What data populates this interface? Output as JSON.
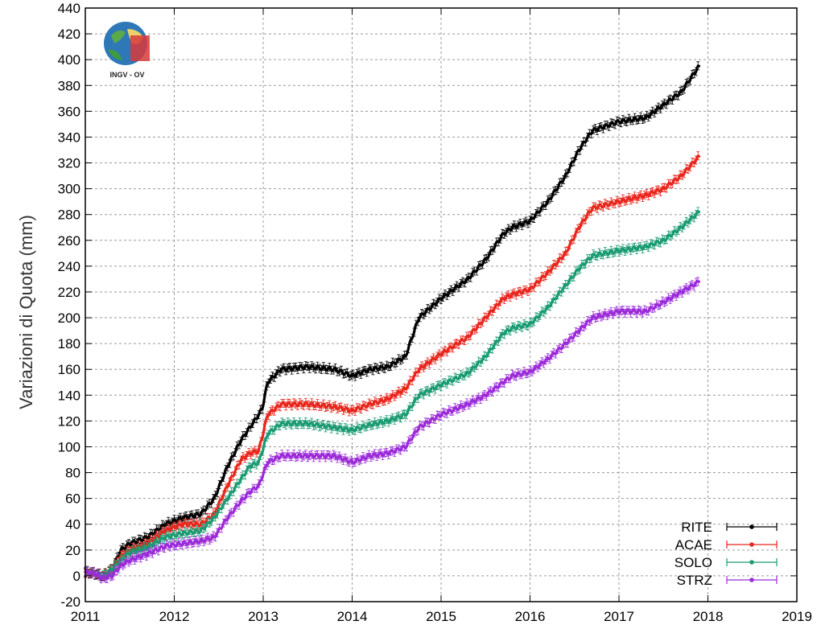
{
  "logo": {
    "text": "INGV - OV"
  },
  "chart_data": {
    "type": "line",
    "ylabel": "Variazioni di Quota (mm)",
    "xlabel": "",
    "xlim": [
      2011,
      2019
    ],
    "ylim": [
      -20,
      440
    ],
    "x_ticks": [
      "2011",
      "2012",
      "2013",
      "2014",
      "2015",
      "2016",
      "2017",
      "2018",
      "2019"
    ],
    "y_ticks": [
      "-20",
      "0",
      "20",
      "40",
      "60",
      "80",
      "100",
      "120",
      "140",
      "160",
      "180",
      "200",
      "220",
      "240",
      "260",
      "280",
      "300",
      "320",
      "340",
      "360",
      "380",
      "400",
      "420",
      "440"
    ],
    "grid": true,
    "legend_position": "bottom-right",
    "series": [
      {
        "name": "RITE",
        "color": "#000000",
        "x": [
          2011.0,
          2011.1,
          2011.2,
          2011.3,
          2011.4,
          2011.5,
          2011.7,
          2011.9,
          2012.1,
          2012.3,
          2012.45,
          2012.6,
          2012.75,
          2012.85,
          2012.95,
          2012.99,
          2013.05,
          2013.2,
          2013.5,
          2013.8,
          2014.0,
          2014.2,
          2014.4,
          2014.6,
          2014.75,
          2015.0,
          2015.3,
          2015.5,
          2015.7,
          2015.8,
          2016.0,
          2016.2,
          2016.4,
          2016.55,
          2016.7,
          2017.0,
          2017.3,
          2017.5,
          2017.7,
          2017.9
        ],
        "y": [
          3,
          2,
          0,
          5,
          20,
          25,
          30,
          40,
          45,
          48,
          60,
          85,
          105,
          115,
          125,
          130,
          150,
          160,
          162,
          160,
          155,
          160,
          162,
          170,
          200,
          215,
          230,
          245,
          265,
          270,
          275,
          290,
          310,
          330,
          345,
          352,
          355,
          365,
          375,
          395
        ]
      },
      {
        "name": "ACAE",
        "color": "#e8261c",
        "x": [
          2011.0,
          2011.1,
          2011.2,
          2011.3,
          2011.4,
          2011.5,
          2011.7,
          2011.9,
          2012.1,
          2012.3,
          2012.45,
          2012.6,
          2012.75,
          2012.85,
          2012.95,
          2013.05,
          2013.2,
          2013.5,
          2013.8,
          2014.0,
          2014.2,
          2014.4,
          2014.6,
          2014.75,
          2015.0,
          2015.3,
          2015.5,
          2015.7,
          2015.8,
          2016.0,
          2016.2,
          2016.4,
          2016.55,
          2016.7,
          2017.0,
          2017.3,
          2017.5,
          2017.7,
          2017.9
        ],
        "y": [
          3,
          2,
          0,
          5,
          15,
          20,
          25,
          35,
          40,
          40,
          48,
          70,
          90,
          95,
          97,
          125,
          133,
          133,
          131,
          128,
          133,
          137,
          145,
          160,
          172,
          185,
          200,
          215,
          218,
          222,
          235,
          250,
          270,
          285,
          290,
          295,
          300,
          310,
          325
        ]
      },
      {
        "name": "SOLO",
        "color": "#1a9b72",
        "x": [
          2011.0,
          2011.1,
          2011.2,
          2011.3,
          2011.4,
          2011.5,
          2011.7,
          2011.9,
          2012.1,
          2012.3,
          2012.45,
          2012.6,
          2012.75,
          2012.85,
          2012.95,
          2013.05,
          2013.2,
          2013.5,
          2013.8,
          2014.0,
          2014.2,
          2014.4,
          2014.6,
          2014.75,
          2015.0,
          2015.3,
          2015.5,
          2015.7,
          2015.8,
          2016.0,
          2016.2,
          2016.4,
          2016.55,
          2016.7,
          2017.0,
          2017.3,
          2017.5,
          2017.7,
          2017.9
        ],
        "y": [
          3,
          2,
          0,
          5,
          12,
          18,
          22,
          30,
          33,
          35,
          45,
          60,
          75,
          85,
          88,
          110,
          118,
          118,
          115,
          113,
          117,
          120,
          125,
          140,
          148,
          157,
          170,
          188,
          192,
          195,
          208,
          225,
          238,
          248,
          252,
          255,
          260,
          270,
          282
        ]
      },
      {
        "name": "STRZ",
        "color": "#9b2ad9",
        "x": [
          2011.0,
          2011.1,
          2011.2,
          2011.3,
          2011.4,
          2011.5,
          2011.7,
          2011.9,
          2012.1,
          2012.3,
          2012.45,
          2012.6,
          2012.75,
          2012.85,
          2012.95,
          2013.05,
          2013.2,
          2013.5,
          2013.8,
          2014.0,
          2014.2,
          2014.4,
          2014.6,
          2014.75,
          2015.0,
          2015.3,
          2015.5,
          2015.7,
          2015.8,
          2016.0,
          2016.2,
          2016.4,
          2016.55,
          2016.7,
          2017.0,
          2017.3,
          2017.5,
          2017.7,
          2017.9
        ],
        "y": [
          3,
          2,
          -2,
          0,
          8,
          12,
          17,
          23,
          25,
          27,
          30,
          45,
          58,
          65,
          70,
          88,
          93,
          93,
          93,
          88,
          93,
          95,
          100,
          115,
          125,
          133,
          140,
          150,
          155,
          158,
          168,
          180,
          190,
          200,
          205,
          205,
          212,
          220,
          228
        ]
      }
    ]
  }
}
